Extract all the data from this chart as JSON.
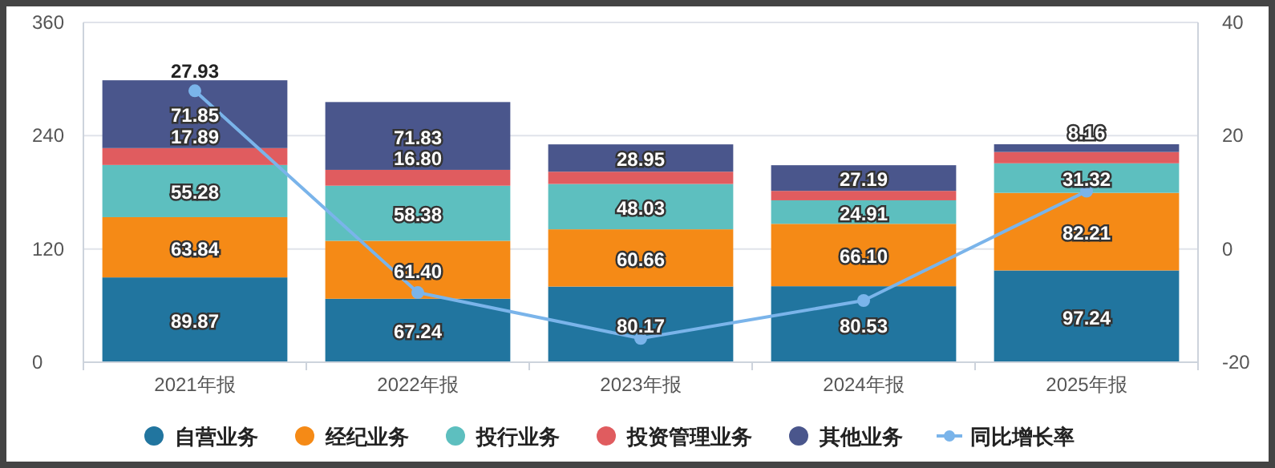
{
  "chart_data": {
    "type": "bar",
    "stacked": true,
    "categories": [
      "2021年报",
      "2022年报",
      "2023年报",
      "2024年报",
      "2025年报"
    ],
    "series": [
      {
        "name": "自营业务",
        "color": "#21759f",
        "values": [
          89.87,
          67.24,
          80.17,
          80.53,
          97.24
        ],
        "value_labels": [
          "89.87",
          "67.24",
          "80.17",
          "80.53",
          "97.24"
        ]
      },
      {
        "name": "经纪业务",
        "color": "#f58a16",
        "values": [
          63.84,
          61.4,
          60.66,
          66.1,
          82.21
        ],
        "value_labels": [
          "63.84",
          "61.40",
          "60.66",
          "66.10",
          "82.21"
        ]
      },
      {
        "name": "投行业务",
        "color": "#5dbfbf",
        "values": [
          55.28,
          58.38,
          48.03,
          24.91,
          31.32
        ],
        "value_labels": [
          "55.28",
          "58.38",
          "48.03",
          "24.91",
          "31.32"
        ]
      },
      {
        "name": "投资管理业务",
        "color": "#e05c5f",
        "values": [
          17.89,
          16.8,
          13,
          10,
          12
        ],
        "value_labels": [
          "17.89",
          "16.80",
          null,
          null,
          null
        ]
      },
      {
        "name": "其他业务",
        "color": "#4a568c",
        "values": [
          71.85,
          71.83,
          28.95,
          27.19,
          8.16
        ],
        "value_labels": [
          "71.85",
          "71.83",
          "28.95",
          "27.19",
          "8.16"
        ]
      },
      {
        "name": "同比增长率",
        "type": "line",
        "axis": "y2",
        "color": "#7ab4ea",
        "marker": "circle",
        "values": [
          27.93,
          -7.7,
          -15.8,
          -9.1,
          10.2
        ],
        "value_labels": [
          "27.93",
          null,
          null,
          null,
          null
        ]
      }
    ],
    "ylim": [
      0,
      360
    ],
    "yticks": [
      0,
      120,
      240,
      360
    ],
    "y2lim": [
      -20,
      40
    ],
    "y2ticks": [
      -20,
      0,
      20,
      40
    ],
    "grid": "y",
    "legend": "bottom"
  }
}
